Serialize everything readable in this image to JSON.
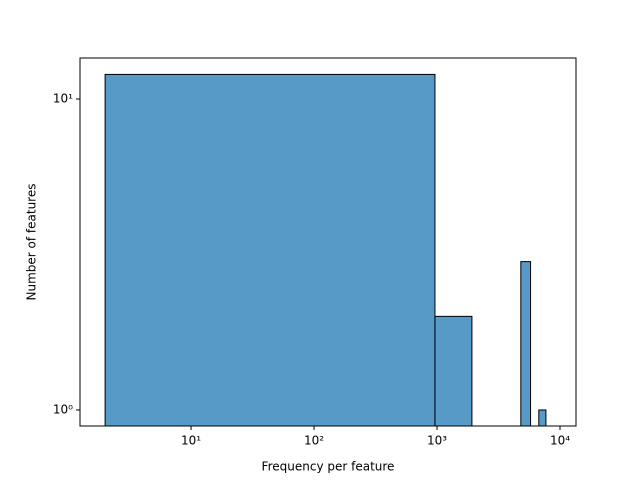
{
  "chart_data": {
    "type": "histogram",
    "xlabel": "Frequency per feature",
    "ylabel": "Number of features",
    "bins": [
      2,
      962,
      1922,
      2882,
      3842,
      4802,
      5762,
      6722,
      7682,
      8642
    ],
    "values": [
      12,
      2,
      0,
      0,
      0,
      3,
      0,
      1,
      0
    ],
    "color": "#5799c7",
    "edgecolor": "#000000",
    "xscale": "log",
    "yscale": "log",
    "xlim": [
      1.25,
      13490
    ],
    "ylim": [
      0.888,
      13.55
    ],
    "xticks": [
      {
        "value": 10,
        "label": "10¹"
      },
      {
        "value": 100,
        "label": "10²"
      },
      {
        "value": 1000,
        "label": "10³"
      },
      {
        "value": 10000,
        "label": "10⁴"
      }
    ],
    "yticks": [
      {
        "value": 1,
        "label": "10⁰"
      },
      {
        "value": 10,
        "label": "10¹"
      }
    ]
  }
}
